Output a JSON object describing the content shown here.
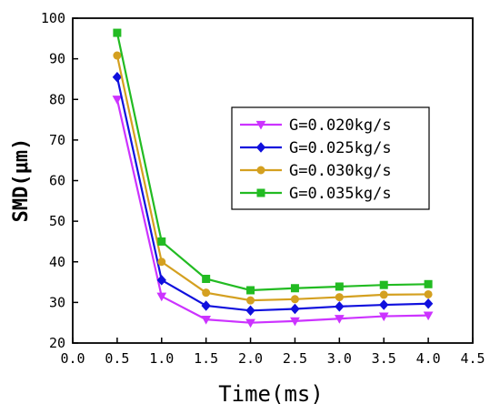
{
  "chart_data": {
    "type": "line",
    "xlabel": "Time(ms)",
    "ylabel": "SMD(μm)",
    "xlim": [
      0.0,
      4.5
    ],
    "ylim": [
      20,
      100
    ],
    "xticks": [
      "0.0",
      "0.5",
      "1.0",
      "1.5",
      "2.0",
      "2.5",
      "3.0",
      "3.5",
      "4.0",
      "4.5"
    ],
    "yticks": [
      "20",
      "30",
      "40",
      "50",
      "60",
      "70",
      "80",
      "90",
      "100"
    ],
    "grid": false,
    "legend_position": "right-center",
    "x": [
      0.5,
      1.0,
      1.5,
      2.0,
      2.5,
      3.0,
      3.5,
      4.0
    ],
    "series": [
      {
        "name": "G=0.020kg/s",
        "color": "#cc33ff",
        "marker": "triangle-down",
        "values": [
          80.0,
          31.5,
          25.8,
          25.0,
          25.4,
          26.0,
          26.6,
          26.8
        ]
      },
      {
        "name": "G=0.025kg/s",
        "color": "#1010dd",
        "marker": "diamond",
        "values": [
          85.5,
          35.5,
          29.2,
          28.0,
          28.4,
          29.0,
          29.4,
          29.7
        ]
      },
      {
        "name": "G=0.030kg/s",
        "color": "#d4a020",
        "marker": "circle",
        "values": [
          90.8,
          40.0,
          32.4,
          30.5,
          30.8,
          31.3,
          31.9,
          32.0
        ]
      },
      {
        "name": "G=0.035kg/s",
        "color": "#22bb22",
        "marker": "square",
        "values": [
          96.4,
          45.0,
          35.8,
          33.0,
          33.5,
          33.9,
          34.3,
          34.5
        ]
      }
    ]
  }
}
